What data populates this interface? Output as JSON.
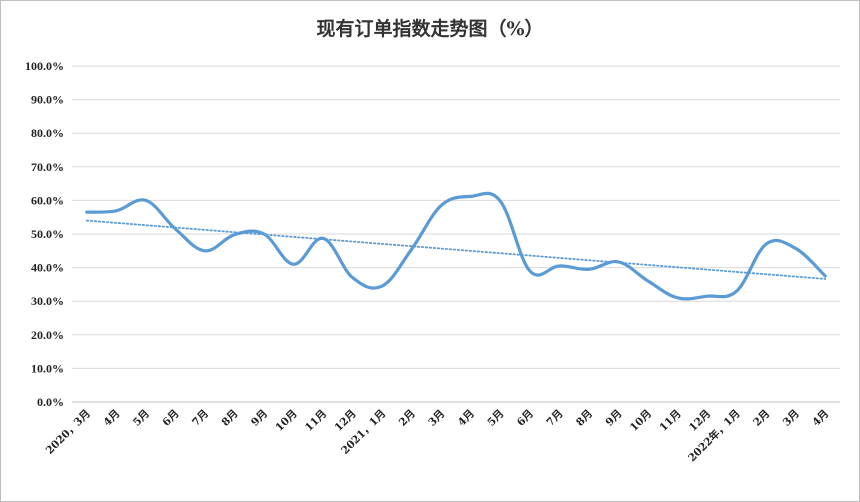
{
  "chart_data": {
    "type": "line",
    "title": "现有订单指数走势图（%）",
    "xlabel": "",
    "ylabel": "",
    "ylim": [
      0,
      100
    ],
    "y_ticks": [
      "0.0%",
      "10.0%",
      "20.0%",
      "30.0%",
      "40.0%",
      "50.0%",
      "60.0%",
      "70.0%",
      "80.0%",
      "90.0%",
      "100.0%"
    ],
    "categories": [
      "2020，3月",
      "4月",
      "5月",
      "6月",
      "7月",
      "8月",
      "9月",
      "10月",
      "11月",
      "12月",
      "2021，1月",
      "2月",
      "3月",
      "4月",
      "5月",
      "6月",
      "7月",
      "8月",
      "9月",
      "10月",
      "11月",
      "12月",
      "2022年，1月",
      "2月",
      "3月",
      "4月"
    ],
    "series": [
      {
        "values": [
          56.5,
          56.9,
          60.0,
          51.5,
          45.0,
          49.8,
          50.0,
          41.0,
          48.7,
          37.0,
          34.5,
          45.5,
          58.5,
          61.2,
          59.8,
          39.0,
          40.5,
          39.5,
          41.7,
          36.0,
          31.0,
          31.5,
          33.0,
          47.0,
          45.7,
          37.5
        ],
        "color": "#5b9bd5"
      }
    ],
    "trendline": {
      "type": "linear",
      "style": "dotted",
      "color": "#5b9bd5"
    },
    "grid": true,
    "legend": "none"
  }
}
